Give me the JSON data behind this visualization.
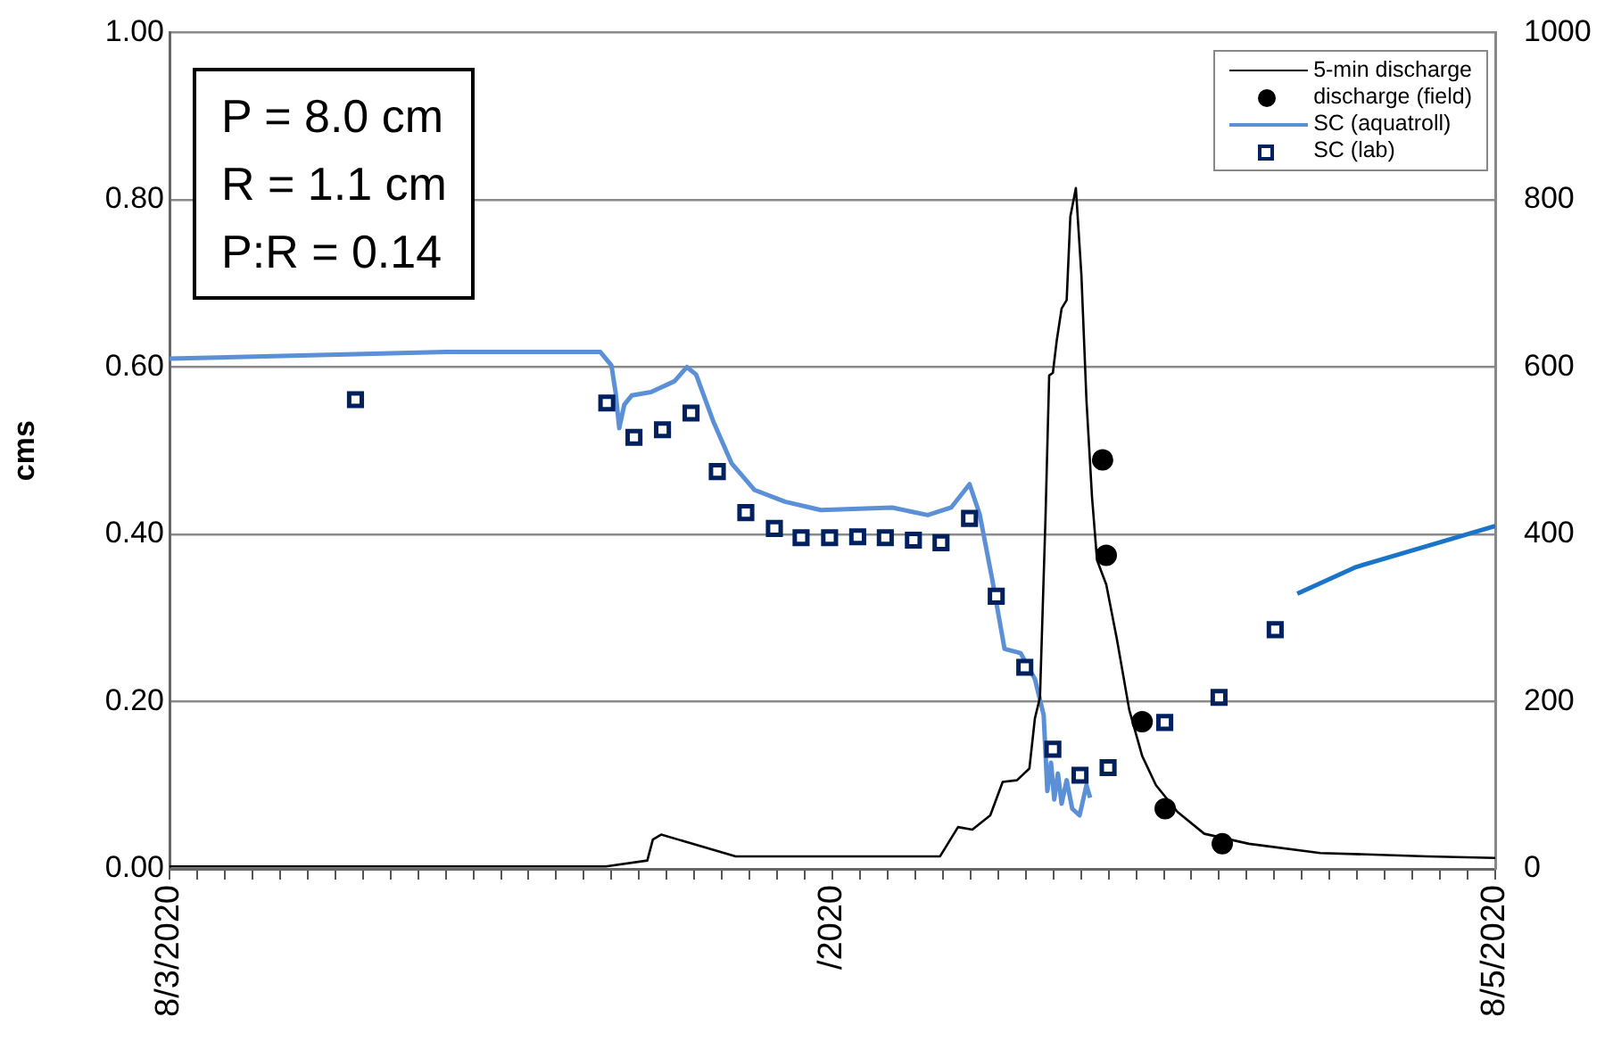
{
  "chart_data": {
    "type": "line",
    "ylabel": "cms",
    "annotations": [
      "P = 8.0 cm",
      "R = 1.1 cm",
      "P:R = 0.14"
    ],
    "xlim": [
      "2020-08-03",
      "2020-08-05"
    ],
    "xticks": [
      {
        "value": "2020-08-03T00:00",
        "label": "8/3/2020"
      },
      {
        "value": "2020-08-03T01:00",
        "label": null
      },
      {
        "value": "2020-08-03T02:00",
        "label": null
      },
      {
        "value": "2020-08-03T03:00",
        "label": null
      },
      {
        "value": "2020-08-03T04:00",
        "label": null
      },
      {
        "value": "2020-08-03T05:00",
        "label": null
      },
      {
        "value": "2020-08-03T06:00",
        "label": null
      },
      {
        "value": "2020-08-03T07:00",
        "label": null
      },
      {
        "value": "2020-08-03T08:00",
        "label": null
      },
      {
        "value": "2020-08-03T09:00",
        "label": null
      },
      {
        "value": "2020-08-03T10:00",
        "label": null
      },
      {
        "value": "2020-08-03T11:00",
        "label": null
      },
      {
        "value": "2020-08-03T12:00",
        "label": null
      },
      {
        "value": "2020-08-03T13:00",
        "label": null
      },
      {
        "value": "2020-08-03T14:00",
        "label": null
      },
      {
        "value": "2020-08-03T15:00",
        "label": null
      },
      {
        "value": "2020-08-03T16:00",
        "label": null
      },
      {
        "value": "2020-08-03T17:00",
        "label": null
      },
      {
        "value": "2020-08-03T18:00",
        "label": null
      },
      {
        "value": "2020-08-03T19:00",
        "label": null
      },
      {
        "value": "2020-08-03T20:00",
        "label": null
      },
      {
        "value": "2020-08-03T21:00",
        "label": null
      },
      {
        "value": "2020-08-03T22:00",
        "label": null
      },
      {
        "value": "2020-08-03T23:00",
        "label": null
      },
      {
        "value": "2020-08-04T00:00",
        "label": "/2020"
      },
      {
        "value": "2020-08-04T01:00",
        "label": null
      },
      {
        "value": "2020-08-04T02:00",
        "label": null
      },
      {
        "value": "2020-08-04T03:00",
        "label": null
      },
      {
        "value": "2020-08-04T04:00",
        "label": null
      },
      {
        "value": "2020-08-04T05:00",
        "label": null
      },
      {
        "value": "2020-08-04T06:00",
        "label": null
      },
      {
        "value": "2020-08-04T07:00",
        "label": null
      },
      {
        "value": "2020-08-04T08:00",
        "label": null
      },
      {
        "value": "2020-08-04T09:00",
        "label": null
      },
      {
        "value": "2020-08-04T10:00",
        "label": null
      },
      {
        "value": "2020-08-04T11:00",
        "label": null
      },
      {
        "value": "2020-08-04T12:00",
        "label": null
      },
      {
        "value": "2020-08-04T13:00",
        "label": null
      },
      {
        "value": "2020-08-04T14:00",
        "label": null
      },
      {
        "value": "2020-08-04T15:00",
        "label": null
      },
      {
        "value": "2020-08-04T16:00",
        "label": null
      },
      {
        "value": "2020-08-04T17:00",
        "label": null
      },
      {
        "value": "2020-08-04T18:00",
        "label": null
      },
      {
        "value": "2020-08-04T19:00",
        "label": null
      },
      {
        "value": "2020-08-04T20:00",
        "label": null
      },
      {
        "value": "2020-08-04T21:00",
        "label": null
      },
      {
        "value": "2020-08-04T22:00",
        "label": null
      },
      {
        "value": "2020-08-04T23:00",
        "label": null
      },
      {
        "value": "2020-08-05T00:00",
        "label": "8/5/2020"
      }
    ],
    "ylim": [
      0,
      1
    ],
    "yticks": [
      {
        "value": 0,
        "label": "0.00"
      },
      {
        "value": 0.2,
        "label": "0.20"
      },
      {
        "value": 0.4,
        "label": "0.40"
      },
      {
        "value": 0.6,
        "label": "0.60"
      },
      {
        "value": 0.8,
        "label": "0.80"
      },
      {
        "value": 1,
        "label": "1.00"
      }
    ],
    "y2lim": [
      0,
      1000
    ],
    "y2ticks": [
      0,
      200,
      400,
      600,
      800,
      1000
    ],
    "grid": "y",
    "legend": "top right",
    "series": [
      {
        "name": "5-min discharge",
        "type": "line",
        "color": "#000000",
        "marker": "none",
        "x": [
          "2020-08-03T00:00",
          "2020-08-03T15:48",
          "2020-08-03T17:18",
          "2020-08-03T17:30",
          "2020-08-03T17:48",
          "2020-08-03T20:30",
          "2020-08-04T03:54",
          "2020-08-04T04:33",
          "2020-08-04T05:04",
          "2020-08-04T05:43",
          "2020-08-04T06:10",
          "2020-08-04T06:41",
          "2020-08-04T07:08",
          "2020-08-04T07:20",
          "2020-08-04T07:31",
          "2020-08-04T07:43",
          "2020-08-04T07:51",
          "2020-08-04T07:59",
          "2020-08-04T08:07",
          "2020-08-04T08:18",
          "2020-08-04T08:29",
          "2020-08-04T08:37",
          "2020-08-04T08:49",
          "2020-08-04T09:01",
          "2020-08-04T09:12",
          "2020-08-04T09:24",
          "2020-08-04T09:35",
          "2020-08-04T09:55",
          "2020-08-04T10:18",
          "2020-08-04T10:45",
          "2020-08-04T11:13",
          "2020-08-04T11:43",
          "2020-08-04T12:30",
          "2020-08-04T13:28",
          "2020-08-04T15:05",
          "2020-08-04T17:40",
          "2020-08-04T21:32",
          "2020-08-05T00:00"
        ],
        "values": [
          0.003,
          0.003,
          0.01,
          0.035,
          0.041,
          0.015,
          0.015,
          0.05,
          0.047,
          0.064,
          0.104,
          0.106,
          0.12,
          0.18,
          0.205,
          0.42,
          0.59,
          0.593,
          0.63,
          0.67,
          0.68,
          0.78,
          0.814,
          0.71,
          0.56,
          0.445,
          0.369,
          0.34,
          0.275,
          0.19,
          0.135,
          0.1,
          0.068,
          0.042,
          0.03,
          0.019,
          0.015,
          0.013
        ]
      },
      {
        "name": "discharge (field)",
        "type": "scatter",
        "color": "#000000",
        "marker": "circle",
        "x": [
          "2020-08-04T09:47",
          "2020-08-04T09:55",
          "2020-08-04T11:13",
          "2020-08-04T12:03",
          "2020-08-04T14:07"
        ],
        "values": [
          0.489,
          0.375,
          0.176,
          0.072,
          0.03
        ]
      },
      {
        "name": "SC (aquatroll)",
        "type": "line",
        "axis": "y2",
        "color": "#5b8fd6",
        "marker": "none",
        "x": [
          "2020-08-03T00:00",
          "2020-08-03T06:06",
          "2020-08-03T10:00",
          "2020-08-03T15:36",
          "2020-08-03T16:00",
          "2020-08-03T16:09",
          "2020-08-03T16:17",
          "2020-08-03T16:28",
          "2020-08-03T16:44",
          "2020-08-03T17:26",
          "2020-08-03T18:17",
          "2020-08-03T18:44",
          "2020-08-03T19:04",
          "2020-08-03T19:42",
          "2020-08-03T20:21",
          "2020-08-03T21:11",
          "2020-08-03T22:17",
          "2020-08-03T23:35",
          "2020-08-04T02:10",
          "2020-08-04T03:27",
          "2020-08-04T04:18",
          "2020-08-04T04:58",
          "2020-08-04T05:20",
          "2020-08-04T05:47",
          "2020-08-04T06:14",
          "2020-08-04T06:49",
          "2020-08-04T07:20",
          "2020-08-04T07:39",
          "2020-08-04T07:47",
          "2020-08-04T07:55",
          "2020-08-04T08:02",
          "2020-08-04T08:10",
          "2020-08-04T08:18",
          "2020-08-04T08:29",
          "2020-08-04T08:41",
          "2020-08-04T08:57",
          "2020-08-04T09:12",
          "2020-08-04T09:20"
        ],
        "values": [
          610,
          615,
          618,
          618,
          602,
          570,
          527,
          555,
          566,
          570,
          583,
          600,
          591,
          534,
          485,
          453,
          439,
          429,
          432,
          423,
          432,
          460,
          424,
          347,
          263,
          258,
          227,
          184,
          93,
          127,
          83,
          114,
          78,
          106,
          72,
          64,
          100,
          85
        ]
      },
      {
        "type": "line",
        "axis": "y2",
        "color": "#1a75c9",
        "marker": "none",
        "x": [
          "2020-08-04T16:50",
          "2020-08-04T18:58",
          "2020-08-04T21:32",
          "2020-08-05T00:00"
        ],
        "values": [
          329,
          361,
          386,
          410
        ]
      },
      {
        "name": "SC (lab)",
        "type": "scatter",
        "axis": "y2",
        "color": "#002060",
        "marker": "square",
        "x": [
          "2020-08-03T06:44",
          "2020-08-03T15:50",
          "2020-08-03T16:49",
          "2020-08-03T17:51",
          "2020-08-03T18:53",
          "2020-08-03T19:50",
          "2020-08-03T20:52",
          "2020-08-03T21:54",
          "2020-08-03T22:52",
          "2020-08-03T23:54",
          "2020-08-04T00:55",
          "2020-08-04T01:55",
          "2020-08-04T02:56",
          "2020-08-04T03:56",
          "2020-08-04T04:58",
          "2020-08-04T05:56",
          "2020-08-04T06:58",
          "2020-08-04T07:59",
          "2020-08-04T08:58",
          "2020-08-04T09:59",
          "2020-08-04T12:02",
          "2020-08-04T14:00",
          "2020-08-04T16:02"
        ],
        "values": [
          561,
          557,
          516,
          525,
          545,
          475,
          426,
          407,
          396,
          396,
          397,
          396,
          393,
          390,
          419,
          326,
          241,
          143,
          112,
          121,
          175,
          205,
          286
        ]
      }
    ]
  }
}
